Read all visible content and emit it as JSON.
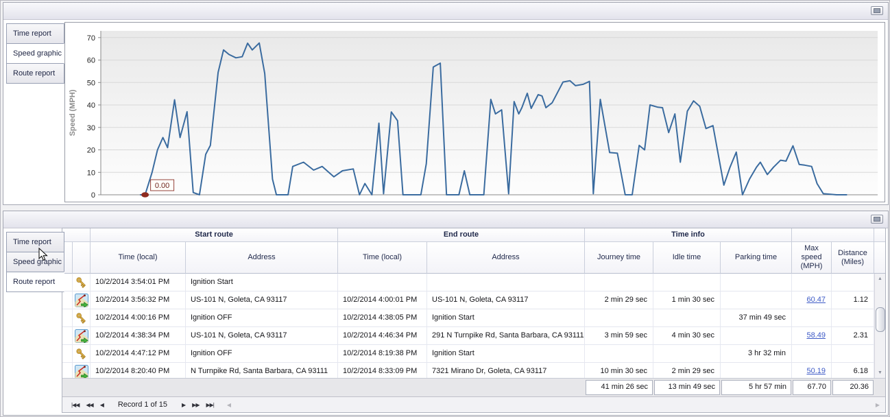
{
  "top_panel": {
    "tabs": [
      {
        "label": "Time report",
        "active": false
      },
      {
        "label": "Speed graphic",
        "active": true
      },
      {
        "label": "Route report",
        "active": false
      }
    ]
  },
  "chart_data": {
    "type": "line",
    "title": "",
    "xlabel": "",
    "ylabel": "Speed (MPH)",
    "yticks": [
      0,
      10,
      20,
      30,
      40,
      50,
      60,
      70
    ],
    "ylim": [
      0,
      73
    ],
    "grid": true,
    "legend": "none",
    "line_color": "#3a6b9f",
    "plot_bg_top": "#e9e9e9",
    "plot_bg_bottom": "#fdfdfd",
    "marker": {
      "x_frac": 0.057,
      "value": 0,
      "label": "0.00",
      "color": "#8e2b20"
    },
    "points": [
      [
        0.051,
        0
      ],
      [
        0.057,
        0
      ],
      [
        0.066,
        10
      ],
      [
        0.073,
        20
      ],
      [
        0.08,
        25.5
      ],
      [
        0.086,
        21
      ],
      [
        0.095,
        42.3
      ],
      [
        0.102,
        25.5
      ],
      [
        0.111,
        37
      ],
      [
        0.119,
        1
      ],
      [
        0.127,
        0
      ],
      [
        0.135,
        18
      ],
      [
        0.141,
        22
      ],
      [
        0.151,
        54.5
      ],
      [
        0.158,
        64.5
      ],
      [
        0.165,
        62.5
      ],
      [
        0.174,
        61
      ],
      [
        0.182,
        61.5
      ],
      [
        0.189,
        67.5
      ],
      [
        0.195,
        64.5
      ],
      [
        0.204,
        67.6
      ],
      [
        0.211,
        54
      ],
      [
        0.221,
        7
      ],
      [
        0.226,
        0
      ],
      [
        0.241,
        0
      ],
      [
        0.247,
        12.6
      ],
      [
        0.261,
        14.5
      ],
      [
        0.274,
        11
      ],
      [
        0.285,
        12.6
      ],
      [
        0.3,
        8
      ],
      [
        0.311,
        10.7
      ],
      [
        0.325,
        11.5
      ],
      [
        0.333,
        0
      ],
      [
        0.34,
        5
      ],
      [
        0.349,
        0
      ],
      [
        0.358,
        31.9
      ],
      [
        0.364,
        0.5
      ],
      [
        0.374,
        36.9
      ],
      [
        0.382,
        33
      ],
      [
        0.389,
        0
      ],
      [
        0.412,
        0
      ],
      [
        0.419,
        13.8
      ],
      [
        0.428,
        56.9
      ],
      [
        0.437,
        58.6
      ],
      [
        0.445,
        0
      ],
      [
        0.461,
        0
      ],
      [
        0.468,
        10.7
      ],
      [
        0.475,
        0
      ],
      [
        0.493,
        0
      ],
      [
        0.502,
        42.5
      ],
      [
        0.508,
        36
      ],
      [
        0.516,
        37.8
      ],
      [
        0.525,
        0.5
      ],
      [
        0.532,
        41.5
      ],
      [
        0.538,
        36
      ],
      [
        0.542,
        38.8
      ],
      [
        0.549,
        45.2
      ],
      [
        0.554,
        38.5
      ],
      [
        0.563,
        44.6
      ],
      [
        0.568,
        44
      ],
      [
        0.573,
        38.8
      ],
      [
        0.581,
        41
      ],
      [
        0.595,
        50.2
      ],
      [
        0.604,
        50.8
      ],
      [
        0.611,
        48.6
      ],
      [
        0.621,
        49.2
      ],
      [
        0.629,
        50.5
      ],
      [
        0.634,
        0.5
      ],
      [
        0.643,
        42.5
      ],
      [
        0.655,
        18.8
      ],
      [
        0.665,
        18.5
      ],
      [
        0.675,
        0
      ],
      [
        0.684,
        0
      ],
      [
        0.693,
        22
      ],
      [
        0.7,
        20
      ],
      [
        0.707,
        40
      ],
      [
        0.717,
        39
      ],
      [
        0.723,
        38.8
      ],
      [
        0.731,
        27.7
      ],
      [
        0.739,
        36
      ],
      [
        0.746,
        14.5
      ],
      [
        0.755,
        37.2
      ],
      [
        0.763,
        41.8
      ],
      [
        0.771,
        39.4
      ],
      [
        0.779,
        29.5
      ],
      [
        0.788,
        30.8
      ],
      [
        0.802,
        4.3
      ],
      [
        0.81,
        12.3
      ],
      [
        0.818,
        19
      ],
      [
        0.826,
        0
      ],
      [
        0.835,
        7
      ],
      [
        0.844,
        12.3
      ],
      [
        0.849,
        14.5
      ],
      [
        0.858,
        9
      ],
      [
        0.866,
        12.3
      ],
      [
        0.875,
        15.4
      ],
      [
        0.882,
        15
      ],
      [
        0.891,
        21.8
      ],
      [
        0.899,
        13.5
      ],
      [
        0.906,
        13.2
      ],
      [
        0.915,
        12.6
      ],
      [
        0.922,
        5
      ],
      [
        0.93,
        0.5
      ],
      [
        0.947,
        0
      ],
      [
        0.96,
        0
      ]
    ]
  },
  "bottom_panel": {
    "tabs": [
      {
        "label": "Time report",
        "active": false
      },
      {
        "label": "Speed graphic",
        "active": false
      },
      {
        "label": "Route report",
        "active": true
      }
    ],
    "table": {
      "group_headers": [
        {
          "label": "Start route"
        },
        {
          "label": "End route"
        },
        {
          "label": "Time info"
        }
      ],
      "columns": [
        "Time (local)",
        "Address",
        "Time (local)",
        "Address",
        "Journey time",
        "Idle time",
        "Parking time",
        "Max speed (MPH)",
        "Distance (Miles)"
      ],
      "rows": [
        {
          "icon": "key",
          "cells": [
            "10/2/2014 3:54:01 PM",
            "Ignition Start",
            "",
            "",
            "",
            "",
            "",
            "",
            ""
          ]
        },
        {
          "icon": "route",
          "cells": [
            "10/2/2014 3:56:32 PM",
            "US-101 N, Goleta, CA 93117",
            "10/2/2014 4:00:01 PM",
            "US-101 N, Goleta, CA 93117",
            "2 min 29 sec",
            "1 min 30 sec",
            "",
            "60.47",
            "1.12"
          ]
        },
        {
          "icon": "key",
          "cells": [
            "10/2/2014 4:00:16 PM",
            "Ignition OFF",
            "10/2/2014 4:38:05 PM",
            "Ignition Start",
            "",
            "",
            "37 min 49 sec",
            "",
            ""
          ]
        },
        {
          "icon": "route",
          "cells": [
            "10/2/2014 4:38:34 PM",
            "US-101 N, Goleta, CA 93117",
            "10/2/2014 4:46:34 PM",
            "291 N Turnpike Rd, Santa Barbara, CA 93111",
            "3 min 59 sec",
            "4 min 30 sec",
            "",
            "58.49",
            "2.31"
          ]
        },
        {
          "icon": "key",
          "cells": [
            "10/2/2014 4:47:12 PM",
            "Ignition OFF",
            "10/2/2014 8:19:38 PM",
            "Ignition Start",
            "",
            "",
            "3 hr 32 min",
            "",
            ""
          ]
        },
        {
          "icon": "route",
          "cells": [
            "10/2/2014 8:20:40 PM",
            "N Turnpike Rd, Santa Barbara, CA 93111",
            "10/2/2014 8:33:09 PM",
            "7321 Mirano Dr, Goleta, CA 93117",
            "10 min 30 sec",
            "2 min 29 sec",
            "",
            "50.19",
            "6.18"
          ]
        }
      ],
      "summary": {
        "journey_time": "41 min 26 sec",
        "idle_time": "13 min 49 sec",
        "parking_time": "5 hr 57 min",
        "max_speed": "67.70",
        "distance": "20.36"
      }
    },
    "record_navigator": {
      "label": "Record 1 of 15",
      "buttons": [
        "first-record",
        "previous-page",
        "previous-record",
        "next-record",
        "next-page",
        "last-record"
      ]
    }
  }
}
